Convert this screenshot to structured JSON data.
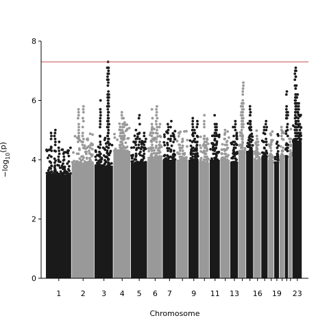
{
  "chart_data": {
    "type": "scatter",
    "subtype": "manhattan",
    "title": "",
    "xlabel": "Chromosome",
    "ylabel": "−log10(p)",
    "ylabel_parts": {
      "prefix": "−log",
      "sub": "10",
      "suffix": "(p)"
    },
    "ylim": [
      0,
      8
    ],
    "yticks": [
      0,
      2,
      4,
      6,
      8
    ],
    "xtick_labels": [
      "1",
      "2",
      "3",
      "4",
      "5",
      "6",
      "7",
      "9",
      "11",
      "13",
      "16",
      "19",
      "23"
    ],
    "significance_line": {
      "value": 7.3,
      "color": "#c44e52"
    },
    "colors": {
      "odd": "#1a1a1a",
      "even": "#999999"
    },
    "grid": false,
    "legend": "none",
    "chromosomes": [
      {
        "id": 1,
        "len": 34,
        "bulk": 3.5,
        "peaks": [
          [
            0.2,
            4.9
          ],
          [
            0.35,
            5.0
          ],
          [
            0.5,
            4.6
          ],
          [
            0.7,
            4.2
          ]
        ]
      },
      {
        "id": 2,
        "len": 30,
        "bulk": 3.9,
        "peaks": [
          [
            0.3,
            5.7
          ],
          [
            0.5,
            5.8
          ],
          [
            0.8,
            4.4
          ]
        ]
      },
      {
        "id": 3,
        "len": 25,
        "bulk": 3.8,
        "peaks": [
          [
            0.3,
            6.0
          ],
          [
            0.7,
            7.3
          ],
          [
            0.72,
            7.1
          ],
          [
            0.75,
            6.9
          ]
        ]
      },
      {
        "id": 4,
        "len": 23,
        "bulk": 4.3,
        "peaks": [
          [
            0.5,
            5.6
          ],
          [
            0.6,
            5.4
          ],
          [
            0.4,
            5.0
          ]
        ]
      },
      {
        "id": 5,
        "len": 22,
        "bulk": 3.9,
        "peaks": [
          [
            0.5,
            5.5
          ],
          [
            0.3,
            5.0
          ],
          [
            0.8,
            4.9
          ]
        ]
      },
      {
        "id": 6,
        "len": 20,
        "bulk": 4.1,
        "peaks": [
          [
            0.3,
            5.7
          ],
          [
            0.6,
            5.8
          ],
          [
            0.8,
            5.2
          ]
        ]
      },
      {
        "id": 7,
        "len": 18,
        "bulk": 4.0,
        "peaks": [
          [
            0.4,
            5.2
          ],
          [
            0.6,
            5.3
          ],
          [
            0.8,
            4.8
          ]
        ]
      },
      {
        "id": 8,
        "len": 16,
        "bulk": 4.0,
        "peaks": [
          [
            0.5,
            4.7
          ],
          [
            0.3,
            4.5
          ]
        ]
      },
      {
        "id": 9,
        "len": 14,
        "bulk": 4.0,
        "peaks": [
          [
            0.4,
            5.4
          ],
          [
            0.6,
            5.0
          ],
          [
            0.8,
            5.3
          ]
        ]
      },
      {
        "id": 10,
        "len": 14,
        "bulk": 3.9,
        "peaks": [
          [
            0.5,
            5.5
          ],
          [
            0.7,
            4.6
          ]
        ]
      },
      {
        "id": 11,
        "len": 14,
        "bulk": 4.0,
        "peaks": [
          [
            0.5,
            5.5
          ],
          [
            0.6,
            5.2
          ],
          [
            0.3,
            4.5
          ]
        ]
      },
      {
        "id": 12,
        "len": 13,
        "bulk": 4.0,
        "peaks": [
          [
            0.5,
            5.0
          ],
          [
            0.7,
            4.6
          ]
        ]
      },
      {
        "id": 13,
        "len": 11,
        "bulk": 3.9,
        "peaks": [
          [
            0.4,
            5.1
          ],
          [
            0.6,
            5.3
          ],
          [
            0.8,
            4.9
          ]
        ]
      },
      {
        "id": 14,
        "len": 10,
        "bulk": 4.2,
        "peaks": [
          [
            0.4,
            5.9
          ],
          [
            0.6,
            6.6
          ],
          [
            0.5,
            5.7
          ]
        ]
      },
      {
        "id": 15,
        "len": 10,
        "bulk": 4.3,
        "peaks": [
          [
            0.5,
            5.8
          ],
          [
            0.6,
            5.6
          ]
        ]
      },
      {
        "id": 16,
        "len": 10,
        "bulk": 4.0,
        "peaks": [
          [
            0.4,
            4.8
          ],
          [
            0.6,
            4.6
          ]
        ]
      },
      {
        "id": 17,
        "len": 9,
        "bulk": 4.1,
        "peaks": [
          [
            0.4,
            5.1
          ],
          [
            0.7,
            5.3
          ]
        ]
      },
      {
        "id": 18,
        "len": 8,
        "bulk": 4.0,
        "peaks": [
          [
            0.5,
            4.6
          ]
        ]
      },
      {
        "id": 19,
        "len": 7,
        "bulk": 3.9,
        "peaks": [
          [
            0.5,
            4.6
          ],
          [
            0.7,
            4.2
          ]
        ]
      },
      {
        "id": 20,
        "len": 7,
        "bulk": 4.0,
        "peaks": [
          [
            0.4,
            5.1
          ],
          [
            0.6,
            4.4
          ]
        ]
      },
      {
        "id": 21,
        "len": 5,
        "bulk": 4.1,
        "peaks": [
          [
            0.5,
            6.3
          ],
          [
            0.7,
            5.6
          ]
        ]
      },
      {
        "id": 22,
        "len": 5,
        "bulk": 4.1,
        "peaks": [
          [
            0.5,
            4.7
          ]
        ]
      },
      {
        "id": 23,
        "len": 13,
        "bulk": 4.6,
        "peaks": [
          [
            0.3,
            7.1
          ],
          [
            0.35,
            7.0
          ],
          [
            0.5,
            6.2
          ],
          [
            0.6,
            5.9
          ],
          [
            0.8,
            5.2
          ]
        ]
      }
    ]
  }
}
